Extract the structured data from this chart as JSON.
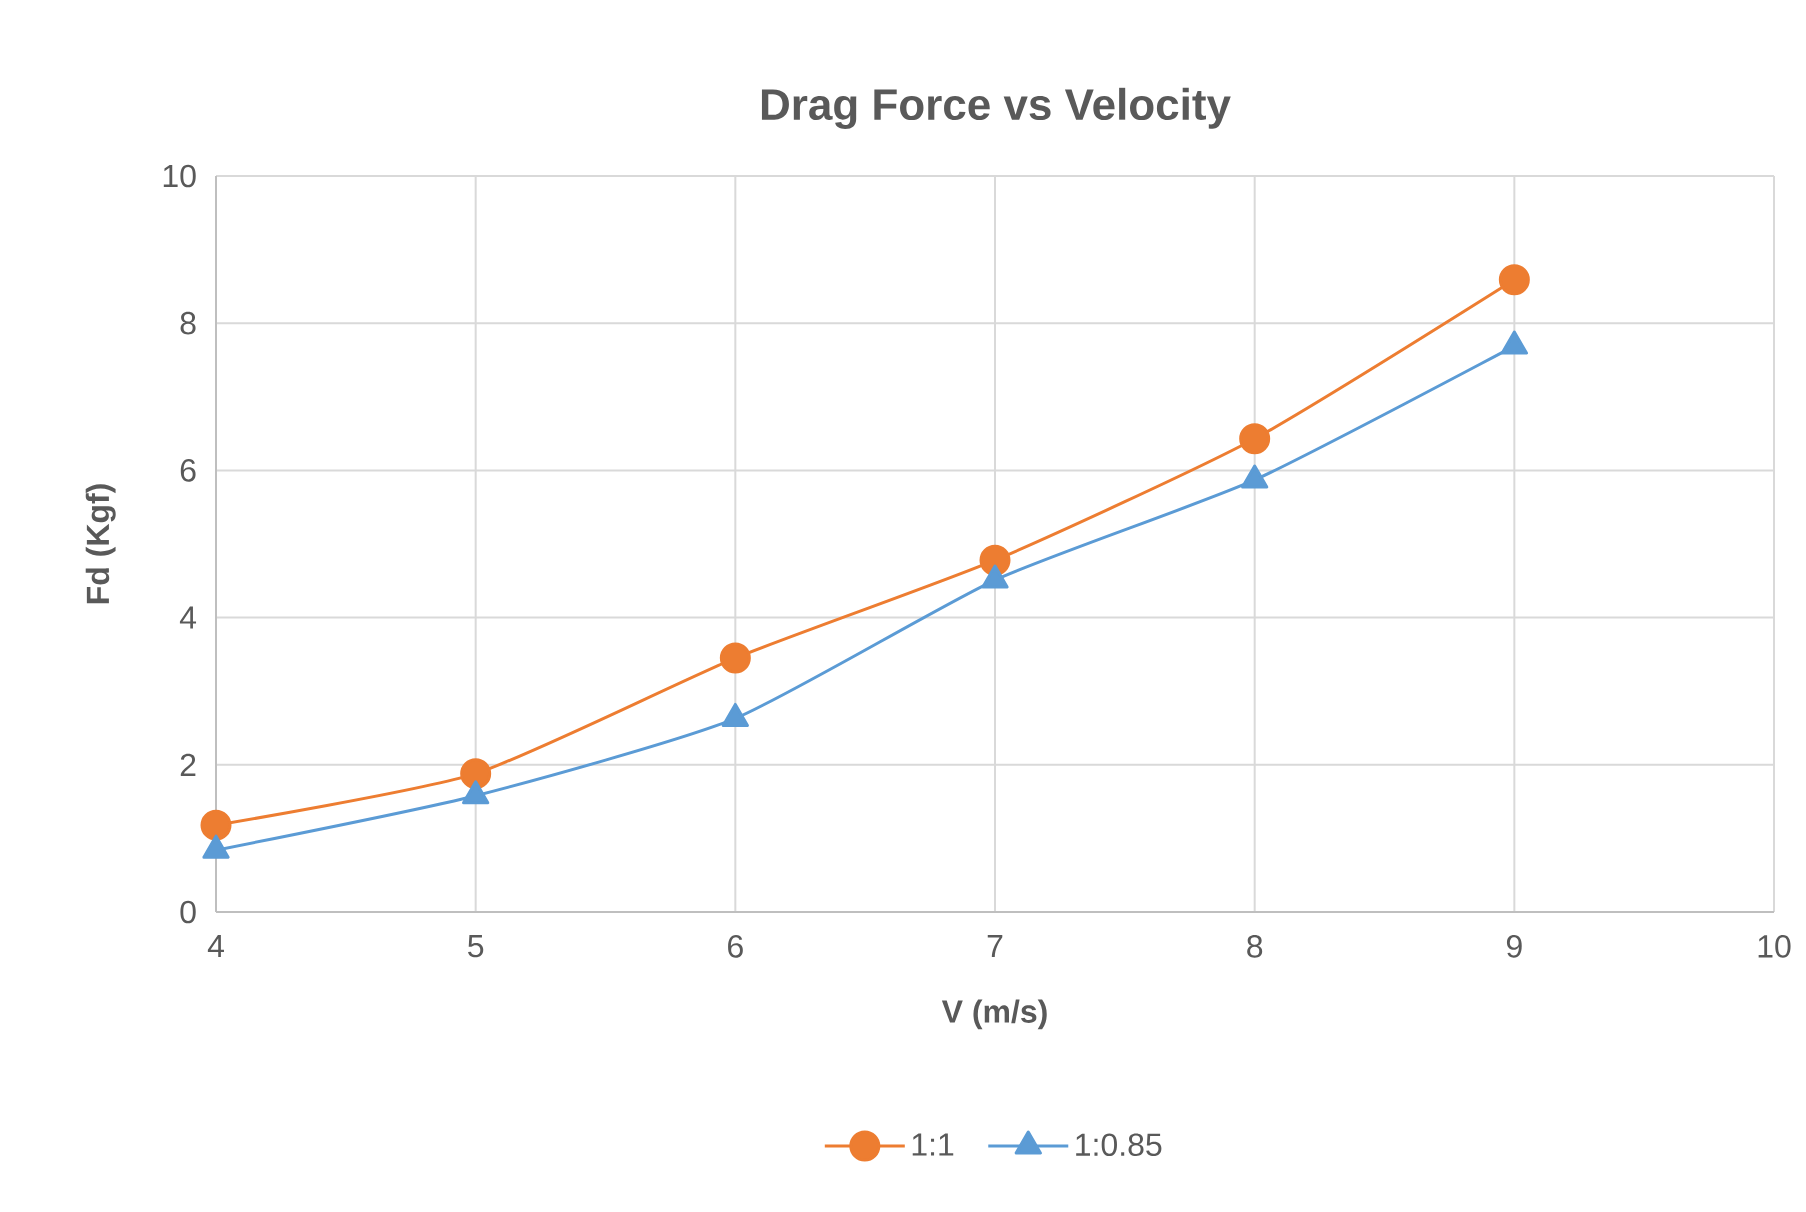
{
  "chart_data": {
    "type": "line",
    "title": "Drag Force vs Velocity",
    "xlabel": "V (m/s)",
    "ylabel": "Fd (Kgf)",
    "x": [
      4,
      5,
      6,
      7,
      8,
      9
    ],
    "series": [
      {
        "name": "1:1",
        "color": "#ed7d31",
        "marker": "circle",
        "values": [
          1.18,
          1.88,
          3.45,
          4.78,
          6.43,
          8.59
        ]
      },
      {
        "name": "1:0.85",
        "color": "#5b9bd5",
        "marker": "triangle",
        "values": [
          0.84,
          1.58,
          2.63,
          4.51,
          5.87,
          7.69
        ]
      }
    ],
    "xlim": [
      4,
      10
    ],
    "xticks": [
      4,
      5,
      6,
      7,
      8,
      9,
      10
    ],
    "ylim": [
      0,
      10
    ],
    "yticks": [
      0,
      2,
      4,
      6,
      8,
      10
    ],
    "grid": true,
    "legend": "bottom",
    "line_style": "solid"
  }
}
